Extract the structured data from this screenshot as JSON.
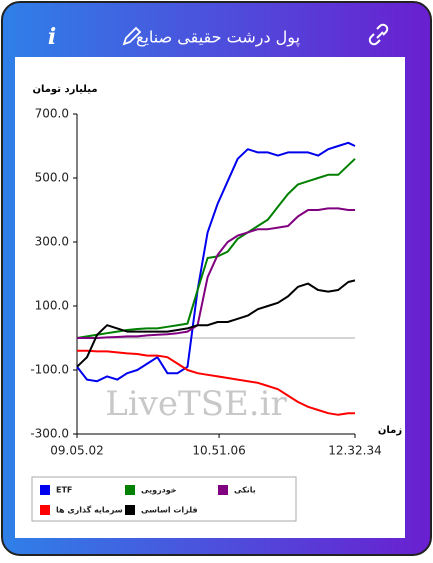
{
  "header": {
    "title": "پول درشت حقیقی صنایع",
    "info": "i"
  },
  "chart_data": {
    "type": "line",
    "y_label": "میلیارد تومان",
    "x_label": "زمان",
    "watermark": "LiveTSE.ir",
    "x": [
      32702,
      33152,
      33602,
      34052,
      34502,
      34952,
      35402,
      35852,
      36302,
      36752,
      37202,
      37652,
      38102,
      38552,
      39002,
      39452,
      39902,
      40352,
      40802,
      41252,
      41702,
      42152,
      42602,
      43052,
      43502,
      43952,
      44402,
      44852,
      45154
    ],
    "xlim": [
      32702,
      45154
    ],
    "xticks": [
      {
        "value": 32702,
        "label": "09.05.02"
      },
      {
        "value": 39066,
        "label": "10.51.06"
      },
      {
        "value": 45154,
        "label": "12.32.34"
      }
    ],
    "ylim": [
      -300,
      700
    ],
    "yticks": [
      {
        "value": -300,
        "label": "-300.0"
      },
      {
        "value": -100,
        "label": "-100.0"
      },
      {
        "value": 100,
        "label": "100.0"
      },
      {
        "value": 300,
        "label": "300.0"
      },
      {
        "value": 500,
        "label": "500.0"
      },
      {
        "value": 700,
        "label": "700.0"
      }
    ],
    "series": [
      {
        "name": "ETF",
        "color": "#0000ee",
        "values": [
          -90,
          -130,
          -135,
          -120,
          -130,
          -110,
          -100,
          -80,
          -60,
          -110,
          -110,
          -90,
          150,
          330,
          420,
          490,
          560,
          590,
          580,
          580,
          570,
          580,
          580,
          580,
          570,
          590,
          600,
          610,
          600
        ]
      },
      {
        "name": "خودرویی",
        "color": "#008000",
        "values": [
          0,
          5,
          10,
          15,
          20,
          25,
          28,
          30,
          30,
          35,
          40,
          45,
          150,
          250,
          255,
          270,
          310,
          330,
          350,
          370,
          410,
          450,
          480,
          490,
          500,
          510,
          510,
          540,
          560
        ]
      },
      {
        "name": "بانکی",
        "color": "#800080",
        "values": [
          0,
          0,
          0,
          2,
          3,
          5,
          5,
          8,
          10,
          12,
          15,
          20,
          40,
          190,
          260,
          300,
          320,
          330,
          340,
          340,
          345,
          350,
          380,
          400,
          400,
          405,
          405,
          400,
          400
        ]
      },
      {
        "name": "سرمایه گذاری ها",
        "color": "#ff0000",
        "values": [
          -40,
          -40,
          -42,
          -42,
          -45,
          -48,
          -50,
          -55,
          -55,
          -60,
          -80,
          -100,
          -110,
          -115,
          -120,
          -125,
          -130,
          -135,
          -140,
          -150,
          -160,
          -180,
          -200,
          -215,
          -225,
          -235,
          -240,
          -235,
          -235
        ]
      },
      {
        "name": "فلزات اساسی",
        "color": "#000000",
        "values": [
          -90,
          -60,
          10,
          40,
          30,
          20,
          20,
          20,
          20,
          20,
          25,
          30,
          40,
          40,
          50,
          50,
          60,
          70,
          90,
          100,
          110,
          130,
          160,
          170,
          150,
          145,
          150,
          175,
          180
        ]
      }
    ]
  }
}
